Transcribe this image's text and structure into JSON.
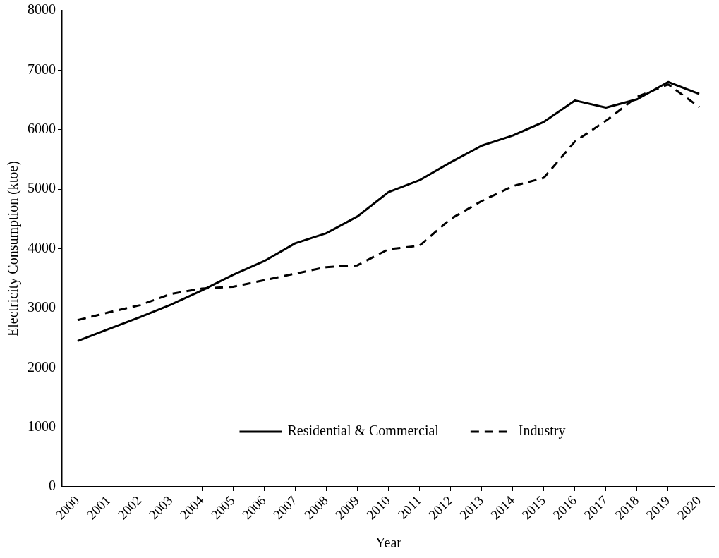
{
  "chart_data": {
    "type": "line",
    "xlabel": "Year",
    "ylabel": "Electricity Consumption (ktoe)",
    "categories": [
      "2000",
      "2001",
      "2002",
      "2003",
      "2004",
      "2005",
      "2006",
      "2007",
      "2008",
      "2009",
      "2010",
      "2011",
      "2012",
      "2013",
      "2014",
      "2015",
      "2016",
      "2017",
      "2018",
      "2019",
      "2020"
    ],
    "series": [
      {
        "name": "Residential & Commercial",
        "color": "#000000",
        "line_style": "solid",
        "values": [
          2450,
          2650,
          2850,
          3060,
          3300,
          3560,
          3790,
          4090,
          4260,
          4540,
          4950,
          5150,
          5450,
          5730,
          5900,
          6130,
          6490,
          6370,
          6510,
          6800,
          6600
        ]
      },
      {
        "name": "Industry",
        "color": "#000000",
        "line_style": "dashed",
        "values": [
          2800,
          2930,
          3050,
          3240,
          3330,
          3360,
          3470,
          3580,
          3690,
          3720,
          3990,
          4050,
          4500,
          4800,
          5050,
          5190,
          5800,
          6150,
          6550,
          6760,
          6380
        ]
      }
    ],
    "ylim": [
      0,
      8000
    ],
    "yticks": [
      0,
      1000,
      2000,
      3000,
      4000,
      5000,
      6000,
      7000,
      8000
    ],
    "grid": false,
    "legend": "bottom",
    "marker": "none"
  }
}
